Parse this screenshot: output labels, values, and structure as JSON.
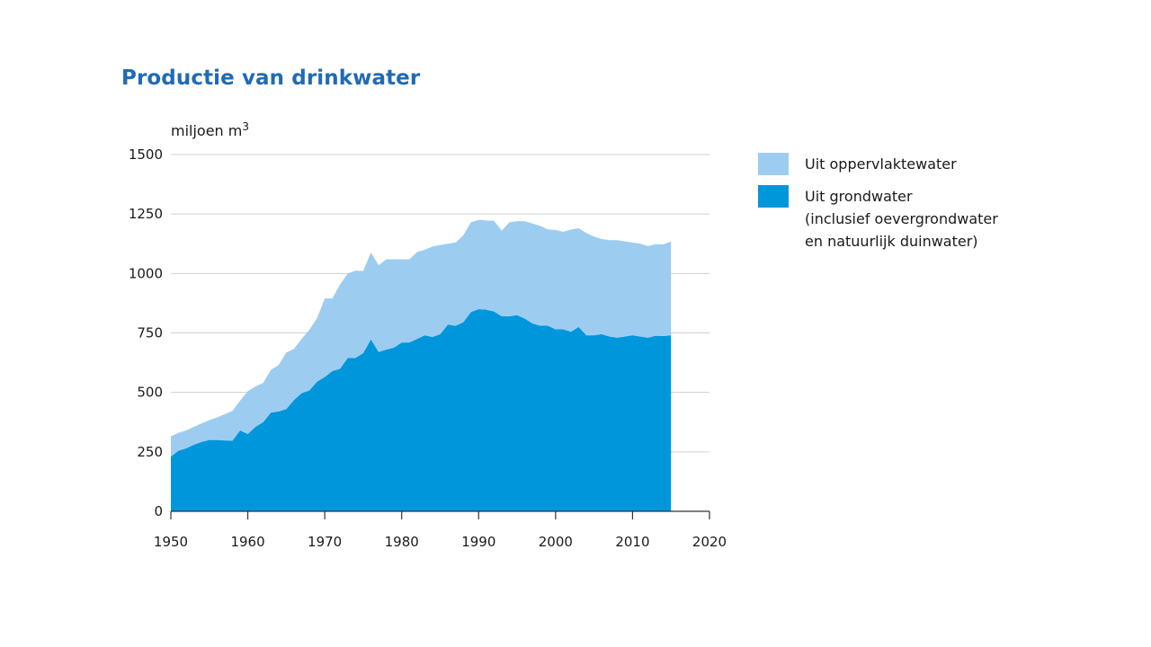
{
  "title": "Productie van drinkwater",
  "legend": [
    {
      "lines": [
        "Uit oppervlaktewater"
      ],
      "color": "#9ccdf0"
    },
    {
      "lines": [
        "Uit grondwater",
        "(inclusief oevergrondwater",
        "en natuurlijk duinwater)"
      ],
      "color": "#0096dc"
    }
  ],
  "chart_data": {
    "type": "area",
    "stacked": true,
    "ylabel": "miljoen m",
    "ylabel_superscript": "3",
    "xlim": [
      1950,
      2020
    ],
    "ylim": [
      0,
      1500
    ],
    "x_ticks": [
      1950,
      1960,
      1970,
      1980,
      1990,
      2000,
      2010,
      2020
    ],
    "y_ticks": [
      0,
      250,
      500,
      750,
      1000,
      1250,
      1500
    ],
    "grid": true,
    "legend_position": "right",
    "x": [
      1950,
      1951,
      1952,
      1953,
      1954,
      1955,
      1956,
      1957,
      1958,
      1959,
      1960,
      1961,
      1962,
      1963,
      1964,
      1965,
      1966,
      1967,
      1968,
      1969,
      1970,
      1971,
      1972,
      1973,
      1974,
      1975,
      1976,
      1977,
      1978,
      1979,
      1980,
      1981,
      1982,
      1983,
      1984,
      1985,
      1986,
      1987,
      1988,
      1989,
      1990,
      1991,
      1992,
      1993,
      1994,
      1995,
      1996,
      1997,
      1998,
      1999,
      2000,
      2001,
      2002,
      2003,
      2004,
      2005,
      2006,
      2007,
      2008,
      2009,
      2010,
      2011,
      2012,
      2013,
      2014,
      2015
    ],
    "series": [
      {
        "name": "Uit grondwater",
        "color": "#0096dc",
        "values": [
          230,
          255,
          265,
          280,
          292,
          300,
          300,
          298,
          297,
          340,
          325,
          355,
          375,
          415,
          420,
          430,
          468,
          497,
          508,
          545,
          565,
          590,
          600,
          645,
          645,
          665,
          723,
          670,
          680,
          688,
          710,
          710,
          725,
          740,
          733,
          745,
          785,
          780,
          795,
          838,
          850,
          848,
          840,
          820,
          820,
          825,
          810,
          790,
          780,
          780,
          765,
          765,
          755,
          775,
          740,
          740,
          745,
          735,
          730,
          735,
          740,
          735,
          730,
          738,
          737,
          740
        ]
      },
      {
        "name": "Uit oppervlaktewater",
        "color": "#9ccdf0",
        "values": [
          85,
          75,
          75,
          75,
          78,
          83,
          95,
          110,
          125,
          125,
          180,
          170,
          165,
          180,
          195,
          238,
          215,
          228,
          255,
          267,
          330,
          305,
          355,
          355,
          367,
          345,
          365,
          365,
          380,
          372,
          350,
          350,
          365,
          360,
          380,
          375,
          340,
          350,
          365,
          377,
          375,
          375,
          382,
          360,
          395,
          395,
          410,
          420,
          420,
          405,
          418,
          410,
          430,
          415,
          430,
          415,
          400,
          405,
          410,
          400,
          390,
          390,
          385,
          385,
          385,
          395
        ]
      }
    ]
  }
}
